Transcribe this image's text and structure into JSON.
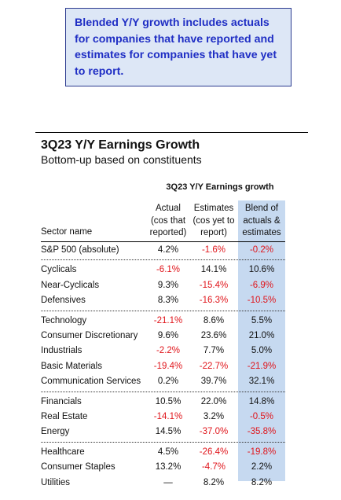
{
  "note": {
    "text": "Blended Y/Y growth includes actuals for companies that have reported and estimates for companies that have yet to report."
  },
  "table": {
    "title": "3Q23 Y/Y Earnings Growth",
    "subtitle": "Bottom-up based on constituents",
    "group_header": "3Q23 Y/Y Earnings growth",
    "sector_header": "Sector name",
    "columns": [
      [
        "Actual",
        "(cos that",
        "reported)"
      ],
      [
        "Estimates",
        "(cos yet to",
        "report)"
      ],
      [
        "Blend of",
        "actuals &",
        "estimates"
      ]
    ],
    "groups": [
      [
        {
          "sector": "S&P 500 (absolute)",
          "actual": "4.2%",
          "estimates": "-1.6%",
          "blend": "-0.2%"
        }
      ],
      [
        {
          "sector": "Cyclicals",
          "actual": "-6.1%",
          "estimates": "14.1%",
          "blend": "10.6%"
        },
        {
          "sector": "Near-Cyclicals",
          "actual": "9.3%",
          "estimates": "-15.4%",
          "blend": "-6.9%"
        },
        {
          "sector": "Defensives",
          "actual": "8.3%",
          "estimates": "-16.3%",
          "blend": "-10.5%"
        }
      ],
      [
        {
          "sector": "Technology",
          "actual": "-21.1%",
          "estimates": "8.6%",
          "blend": "5.5%"
        },
        {
          "sector": "Consumer Discretionary",
          "actual": "9.6%",
          "estimates": "23.6%",
          "blend": "21.0%"
        },
        {
          "sector": "Industrials",
          "actual": "-2.2%",
          "estimates": "7.7%",
          "blend": "5.0%"
        },
        {
          "sector": "Basic Materials",
          "actual": "-19.4%",
          "estimates": "-22.7%",
          "blend": "-21.9%"
        },
        {
          "sector": "Communication Services",
          "actual": "0.2%",
          "estimates": "39.7%",
          "blend": "32.1%"
        }
      ],
      [
        {
          "sector": "Financials",
          "actual": "10.5%",
          "estimates": "22.0%",
          "blend": "14.8%"
        },
        {
          "sector": "Real Estate",
          "actual": "-14.1%",
          "estimates": "3.2%",
          "blend": "-0.5%"
        },
        {
          "sector": "Energy",
          "actual": "14.5%",
          "estimates": "-37.0%",
          "blend": "-35.8%"
        }
      ],
      [
        {
          "sector": "Healthcare",
          "actual": "4.5%",
          "estimates": "-26.4%",
          "blend": "-19.8%"
        },
        {
          "sector": "Consumer Staples",
          "actual": "13.2%",
          "estimates": "-4.7%",
          "blend": "2.2%"
        },
        {
          "sector": "Utilities",
          "actual": "—",
          "estimates": "8.2%",
          "blend": "8.2%"
        }
      ]
    ],
    "colors": {
      "negative": "#e0151b",
      "positive": "#111111",
      "blend_highlight": "#c6d9f0",
      "note_text": "#1f2ec4",
      "note_background": "#dde7f6"
    }
  }
}
